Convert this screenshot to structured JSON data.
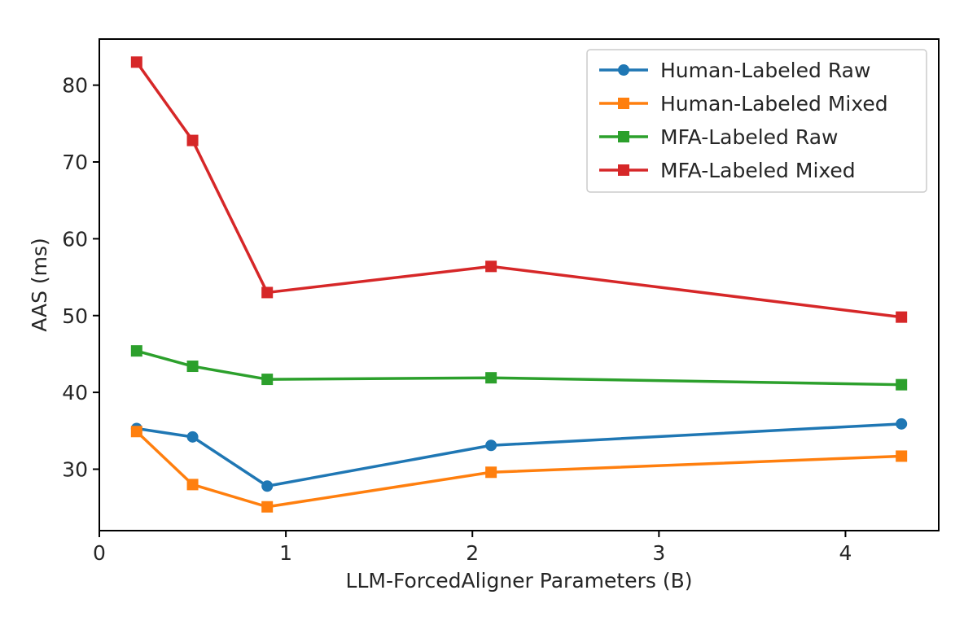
{
  "chart_data": {
    "type": "line",
    "xlabel": "LLM-ForcedAligner Parameters (B)",
    "ylabel": "AAS (ms)",
    "xlim": [
      0,
      4.5
    ],
    "ylim": [
      22,
      86
    ],
    "xticks": [
      0,
      1,
      2,
      3,
      4
    ],
    "yticks": [
      30,
      40,
      50,
      60,
      70,
      80
    ],
    "grid": false,
    "legend_position": "top-right",
    "x": [
      0.2,
      0.5,
      0.9,
      2.1,
      4.3
    ],
    "series": [
      {
        "name": "Human-Labeled Raw",
        "color": "#1f77b4",
        "marker": "circle",
        "values": [
          35.3,
          34.2,
          27.8,
          33.1,
          35.9
        ]
      },
      {
        "name": "Human-Labeled Mixed",
        "color": "#ff7f0e",
        "marker": "square",
        "values": [
          34.9,
          28.0,
          25.1,
          29.6,
          31.7
        ]
      },
      {
        "name": "MFA-Labeled Raw",
        "color": "#2ca02c",
        "marker": "square",
        "values": [
          45.4,
          43.4,
          41.7,
          41.9,
          41.0
        ]
      },
      {
        "name": "MFA-Labeled Mixed",
        "color": "#d62728",
        "marker": "square",
        "values": [
          83.0,
          72.8,
          53.0,
          56.4,
          49.8
        ]
      }
    ]
  }
}
